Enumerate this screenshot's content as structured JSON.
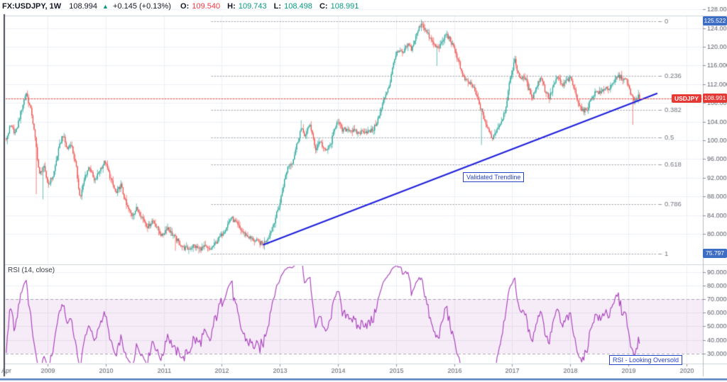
{
  "header": {
    "symbol": "FX:USDJPY, 1W",
    "last_price": "108.994",
    "direction_arrow": "▲",
    "change": "+0.145 (+0.13%)",
    "open_label": "O:",
    "open_value": "109.540",
    "high_label": "H:",
    "high_value": "109.743",
    "low_label": "L:",
    "low_value": "108.498",
    "close_label": "C:",
    "close_value": "108.991"
  },
  "annotations": {
    "trendline_label": "Validated Trendline",
    "rsi_oversold_label": "RSI - Looking Oversold",
    "rsi_title": "RSI (14, close)",
    "symbol_tag": "USDJPY"
  },
  "price_axis": {
    "labels": [
      "128.000",
      "124.000",
      "120.000",
      "116.000",
      "112.000",
      "108.000",
      "104.000",
      "100.000",
      "96.000",
      "92.000",
      "88.000",
      "84.000",
      "80.000"
    ],
    "badges": [
      {
        "text": "125.522",
        "price": 125.522,
        "style": "blue"
      },
      {
        "text": "108.991",
        "price": 108.991,
        "style": "red"
      },
      {
        "text": "75.797",
        "price": 75.797,
        "style": "blue"
      }
    ]
  },
  "rsi_axis": {
    "labels": [
      "90.0000",
      "80.0000",
      "70.0000",
      "60.0000",
      "50.0000",
      "40.0000",
      "30.0000"
    ]
  },
  "time_axis": {
    "labels": [
      {
        "text": "Apr",
        "t": 2008.22,
        "align": "left"
      },
      {
        "text": "2009",
        "t": 2009
      },
      {
        "text": "2010",
        "t": 2010
      },
      {
        "text": "2011",
        "t": 2011
      },
      {
        "text": "2012",
        "t": 2012
      },
      {
        "text": "2013",
        "t": 2013
      },
      {
        "text": "2014",
        "t": 2014
      },
      {
        "text": "2015",
        "t": 2015
      },
      {
        "text": "2016",
        "t": 2016
      },
      {
        "text": "2017",
        "t": 2017
      },
      {
        "text": "2018",
        "t": 2018
      },
      {
        "text": "2019",
        "t": 2019
      },
      {
        "text": "2020",
        "t": 2020
      }
    ]
  },
  "colors": {
    "up": "#26a69a",
    "down": "#ef5350",
    "grid": "#eef0f3",
    "axis_text": "#5d616b",
    "tick": "#8a8e98",
    "fib_line": "#9598a1",
    "fib_text": "#73767e",
    "price_line": "#e04a4a",
    "trendline": "#2020dd",
    "separator": "#cfd3da",
    "axis_border": "#b8bbc2",
    "left_border": "#4a4d57",
    "bottom_bar": "#4d7cc1",
    "badge_blue": "#3d6dc4",
    "badge_red": "#e53935"
  },
  "chart_data": [
    {
      "type": "candlestick",
      "symbol": "USDJPY",
      "timeframe": "1W",
      "t_start": 2008.02,
      "t_end": 2019.21,
      "current_price": 108.991,
      "up_color": "#26a69a",
      "down_color": "#ef5350",
      "price_anchors": [
        [
          2008.02,
          101.5
        ],
        [
          2008.28,
          100.0
        ],
        [
          2008.36,
          103.0
        ],
        [
          2008.45,
          101.5
        ],
        [
          2008.55,
          106.5
        ],
        [
          2008.63,
          110.3
        ],
        [
          2008.73,
          105.5
        ],
        [
          2008.8,
          99.0
        ],
        [
          2008.86,
          92.5
        ],
        [
          2008.93,
          94.5
        ],
        [
          2009.01,
          90.5
        ],
        [
          2009.1,
          92.5
        ],
        [
          2009.18,
          97.5
        ],
        [
          2009.26,
          101.3
        ],
        [
          2009.34,
          98.0
        ],
        [
          2009.4,
          99.5
        ],
        [
          2009.49,
          94.5
        ],
        [
          2009.56,
          87.5
        ],
        [
          2009.65,
          92.5
        ],
        [
          2009.72,
          94.5
        ],
        [
          2009.81,
          91.0
        ],
        [
          2009.89,
          93.5
        ],
        [
          2009.99,
          95.5
        ],
        [
          2010.08,
          92.0
        ],
        [
          2010.18,
          88.5
        ],
        [
          2010.26,
          90.5
        ],
        [
          2010.36,
          86.0
        ],
        [
          2010.45,
          84.0
        ],
        [
          2010.54,
          85.5
        ],
        [
          2010.63,
          83.5
        ],
        [
          2010.73,
          81.5
        ],
        [
          2010.81,
          83.0
        ],
        [
          2010.9,
          81.0
        ],
        [
          2010.97,
          79.5
        ],
        [
          2011.06,
          81.5
        ],
        [
          2011.14,
          80.0
        ],
        [
          2011.24,
          78.5
        ],
        [
          2011.34,
          77.0
        ],
        [
          2011.43,
          76.8
        ],
        [
          2011.51,
          77.5
        ],
        [
          2011.61,
          76.8
        ],
        [
          2011.71,
          77.2
        ],
        [
          2011.79,
          76.5
        ],
        [
          2011.89,
          78.0
        ],
        [
          2011.98,
          79.5
        ],
        [
          2012.08,
          81.5
        ],
        [
          2012.16,
          83.5
        ],
        [
          2012.26,
          82.0
        ],
        [
          2012.35,
          80.5
        ],
        [
          2012.44,
          79.5
        ],
        [
          2012.53,
          78.8
        ],
        [
          2012.63,
          78.2
        ],
        [
          2012.71,
          77.8
        ],
        [
          2012.81,
          79.5
        ],
        [
          2012.9,
          82.5
        ],
        [
          2013.0,
          86.5
        ],
        [
          2013.07,
          91.0
        ],
        [
          2013.14,
          94.5
        ],
        [
          2013.22,
          95.5
        ],
        [
          2013.29,
          99.0
        ],
        [
          2013.36,
          102.5
        ],
        [
          2013.44,
          101.0
        ],
        [
          2013.52,
          103.5
        ],
        [
          2013.61,
          98.0
        ],
        [
          2013.69,
          100.0
        ],
        [
          2013.78,
          97.5
        ],
        [
          2013.87,
          99.0
        ],
        [
          2013.99,
          104.5
        ],
        [
          2014.07,
          102.0
        ],
        [
          2014.17,
          102.5
        ],
        [
          2014.26,
          102.0
        ],
        [
          2014.35,
          101.5
        ],
        [
          2014.44,
          102.0
        ],
        [
          2014.54,
          101.8
        ],
        [
          2014.62,
          102.5
        ],
        [
          2014.72,
          105.5
        ],
        [
          2014.81,
          109.5
        ],
        [
          2014.89,
          112.0
        ],
        [
          2014.98,
          118.0
        ],
        [
          2015.05,
          119.0
        ],
        [
          2015.12,
          118.5
        ],
        [
          2015.2,
          120.5
        ],
        [
          2015.27,
          119.5
        ],
        [
          2015.38,
          123.5
        ],
        [
          2015.44,
          125.2
        ],
        [
          2015.53,
          123.0
        ],
        [
          2015.62,
          121.0
        ],
        [
          2015.7,
          119.8
        ],
        [
          2015.78,
          120.5
        ],
        [
          2015.86,
          122.8
        ],
        [
          2015.93,
          121.5
        ],
        [
          2016.0,
          119.5
        ],
        [
          2016.08,
          117.0
        ],
        [
          2016.15,
          113.5
        ],
        [
          2016.22,
          112.5
        ],
        [
          2016.3,
          112.0
        ],
        [
          2016.37,
          110.0
        ],
        [
          2016.44,
          107.5
        ],
        [
          2016.52,
          104.5
        ],
        [
          2016.59,
          102.0
        ],
        [
          2016.66,
          100.5
        ],
        [
          2016.74,
          102.5
        ],
        [
          2016.81,
          104.0
        ],
        [
          2016.88,
          106.5
        ],
        [
          2016.96,
          112.5
        ],
        [
          2017.04,
          117.3
        ],
        [
          2017.1,
          114.5
        ],
        [
          2017.16,
          113.0
        ],
        [
          2017.22,
          113.5
        ],
        [
          2017.28,
          111.0
        ],
        [
          2017.35,
          109.3
        ],
        [
          2017.42,
          111.5
        ],
        [
          2017.5,
          113.8
        ],
        [
          2017.57,
          110.5
        ],
        [
          2017.64,
          109.0
        ],
        [
          2017.72,
          112.0
        ],
        [
          2017.79,
          113.5
        ],
        [
          2017.86,
          111.5
        ],
        [
          2017.94,
          112.8
        ],
        [
          2018.01,
          113.2
        ],
        [
          2018.08,
          110.5
        ],
        [
          2018.16,
          107.5
        ],
        [
          2018.23,
          106.0
        ],
        [
          2018.3,
          107.0
        ],
        [
          2018.38,
          109.5
        ],
        [
          2018.45,
          110.5
        ],
        [
          2018.52,
          110.0
        ],
        [
          2018.6,
          111.3
        ],
        [
          2018.67,
          111.0
        ],
        [
          2018.74,
          112.0
        ],
        [
          2018.81,
          113.8
        ],
        [
          2018.89,
          113.3
        ],
        [
          2018.96,
          112.8
        ],
        [
          2019.03,
          110.5
        ],
        [
          2019.1,
          108.2
        ],
        [
          2019.16,
          109.5
        ],
        [
          2019.21,
          108.99
        ]
      ],
      "wick_events": [
        {
          "t": 2008.8,
          "low": 88.5
        },
        {
          "t": 2008.92,
          "low": 87.4
        },
        {
          "t": 2011.2,
          "low": 76.4
        },
        {
          "t": 2011.6,
          "low": 75.8
        },
        {
          "t": 2013.37,
          "high": 104.3
        },
        {
          "t": 2015.44,
          "high": 125.8
        },
        {
          "t": 2015.7,
          "low": 115.9
        },
        {
          "t": 2016.48,
          "low": 99.0
        },
        {
          "t": 2019.08,
          "low": 103.3
        }
      ],
      "fib": {
        "p_high": 125.522,
        "p_low": 75.797,
        "start_t": 2011.82,
        "end_t": 2019.49,
        "levels": [
          {
            "value": 0,
            "label": "0"
          },
          {
            "value": 0.236,
            "label": "0.236"
          },
          {
            "value": 0.382,
            "label": "0.382"
          },
          {
            "value": 0.5,
            "label": "0.5"
          },
          {
            "value": 0.618,
            "label": "0.618"
          },
          {
            "value": 0.786,
            "label": "0.786"
          },
          {
            "value": 1,
            "label": "1"
          }
        ]
      },
      "trendline": {
        "t1": 2012.72,
        "p1": 77.7,
        "t2": 2019.49,
        "p2": 110.0
      }
    },
    {
      "type": "line",
      "name": "RSI",
      "params": "(14, close)",
      "period": 14,
      "source": "close",
      "overbought": 70,
      "oversold": 30,
      "grid_levels": [
        90,
        80,
        60,
        50,
        40
      ],
      "color": "#ab47bc",
      "band_fill": "rgba(171,71,188,0.10)",
      "band_border": "#aba4b8"
    }
  ]
}
